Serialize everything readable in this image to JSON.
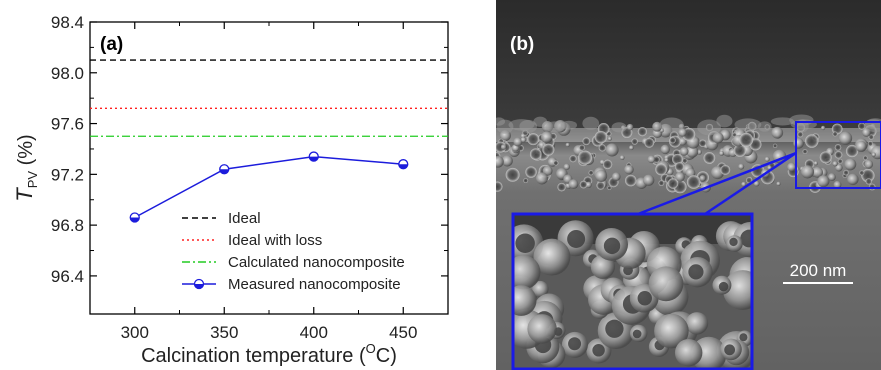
{
  "chart_data": {
    "type": "line",
    "panel_label": "(a)",
    "xlabel": "Calcination temperature (°C)",
    "xlabel_main": "Calcination temperature (",
    "xlabel_sup": "O",
    "xlabel_end": "C)",
    "ylabel_main": "T",
    "ylabel_sub": "PV",
    "ylabel_unit": " (%)",
    "xlim": [
      275,
      475
    ],
    "ylim": [
      96.1,
      98.4
    ],
    "xticks": [
      300,
      350,
      400,
      450
    ],
    "yticks": [
      96.4,
      96.8,
      97.2,
      97.6,
      98.0,
      98.4
    ],
    "ytick_labels": [
      "96.4",
      "96.8",
      "97.2",
      "97.6",
      "98.0",
      "98.4"
    ],
    "series": [
      {
        "name": "Ideal",
        "kind": "hline",
        "y": 98.1,
        "color": "#000000",
        "dash": "dashed"
      },
      {
        "name": "Ideal with loss",
        "kind": "hline",
        "y": 97.72,
        "color": "#ff2020",
        "dash": "dotted"
      },
      {
        "name": "Calculated nanocomposite",
        "kind": "hline",
        "y": 97.5,
        "color": "#22cc22",
        "dash": "dashdot"
      },
      {
        "name": "Measured nanocomposite",
        "kind": "line",
        "color": "#1c1cdc",
        "x": [
          300,
          350,
          400,
          450
        ],
        "y": [
          96.86,
          97.24,
          97.34,
          97.28
        ]
      }
    ],
    "legend_placement": "bottom-right"
  },
  "image_panel": {
    "panel_label": "(b)",
    "scale_bar_label": "200 nm"
  },
  "colors": {
    "highlight_box": "#1a1ae6",
    "micrograph_bg": "#6e6e6e"
  }
}
